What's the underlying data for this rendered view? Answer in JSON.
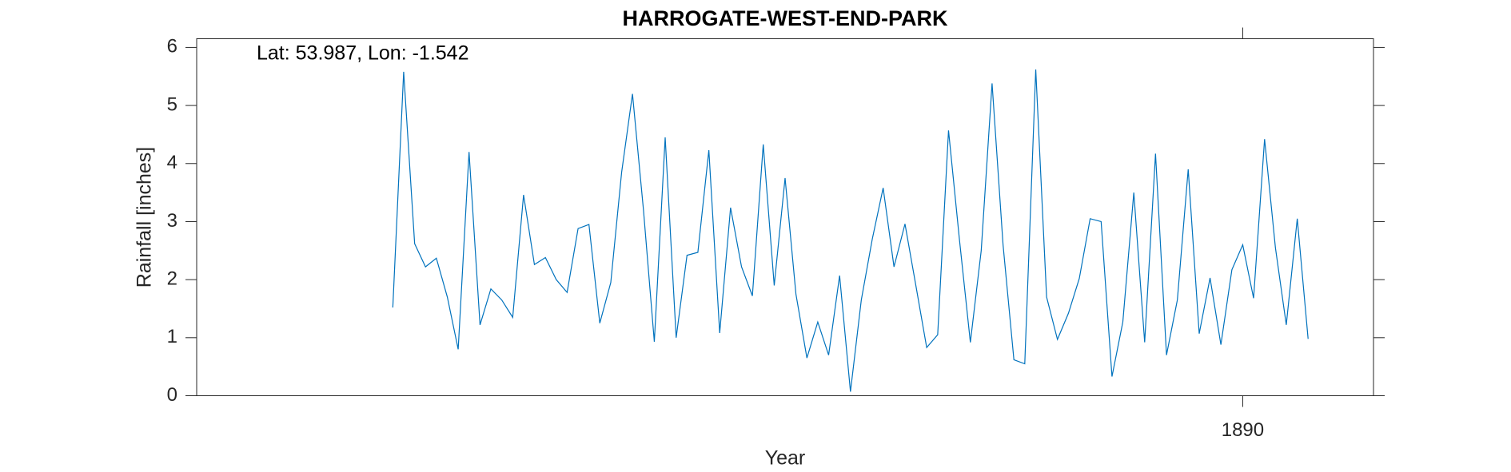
{
  "chart_data": {
    "type": "line",
    "title": "HARROGATE-WEST-END-PARK",
    "annotation": "Lat: 53.987, Lon: -1.542",
    "xlabel": "Year",
    "ylabel": "Rainfall [inches]",
    "xlim": [
      1882,
      1891
    ],
    "xticks": [
      1890
    ],
    "ylim": [
      0,
      6.15
    ],
    "yticks": [
      0,
      1,
      2,
      3,
      4,
      5,
      6
    ],
    "series": [
      {
        "name": "Rainfall",
        "color": "#0072bd",
        "x": [
          1883.5,
          1883.583,
          1883.667,
          1883.75,
          1883.833,
          1883.917,
          1884,
          1884.083,
          1884.167,
          1884.25,
          1884.333,
          1884.417,
          1884.5,
          1884.583,
          1884.667,
          1884.75,
          1884.833,
          1884.917,
          1885,
          1885.083,
          1885.167,
          1885.25,
          1885.333,
          1885.417,
          1885.5,
          1885.583,
          1885.667,
          1885.75,
          1885.833,
          1885.917,
          1886,
          1886.083,
          1886.167,
          1886.25,
          1886.333,
          1886.417,
          1886.5,
          1886.583,
          1886.667,
          1886.75,
          1886.833,
          1886.917,
          1887,
          1887.083,
          1887.167,
          1887.25,
          1887.333,
          1887.417,
          1887.5,
          1887.583,
          1887.667,
          1887.75,
          1887.833,
          1887.917,
          1888,
          1888.083,
          1888.167,
          1888.25,
          1888.333,
          1888.417,
          1888.5,
          1888.583,
          1888.667,
          1888.75,
          1888.833,
          1888.917,
          1889,
          1889.083,
          1889.167,
          1889.25,
          1889.333,
          1889.417,
          1889.5,
          1889.583,
          1889.667,
          1889.75,
          1889.833,
          1889.917,
          1890,
          1890.083,
          1890.167,
          1890.25,
          1890.333,
          1890.417,
          1890.5
        ],
        "values": [
          1.52,
          5.58,
          2.62,
          2.22,
          2.37,
          1.7,
          0.8,
          4.2,
          1.22,
          1.84,
          1.65,
          1.35,
          3.46,
          2.26,
          2.38,
          2.0,
          1.78,
          2.88,
          2.95,
          1.25,
          1.95,
          3.85,
          5.2,
          3.2,
          0.93,
          4.45,
          1.0,
          2.42,
          2.47,
          4.23,
          1.08,
          3.24,
          2.22,
          1.72,
          4.33,
          1.9,
          3.75,
          1.75,
          0.65,
          1.27,
          0.7,
          2.07,
          0.07,
          1.65,
          2.7,
          3.58,
          2.22,
          2.96,
          1.9,
          0.83,
          1.05,
          4.57,
          2.7,
          0.92,
          2.5,
          5.38,
          2.6,
          0.62,
          0.55,
          5.62,
          1.7,
          0.97,
          1.42,
          2.02,
          3.05,
          3.0,
          0.33,
          1.27,
          3.5,
          0.92,
          4.17,
          0.7,
          1.65,
          3.9,
          1.07,
          2.03,
          0.88,
          2.17,
          2.6,
          1.68,
          4.42,
          2.55,
          1.22,
          3.05,
          0.98
        ]
      }
    ]
  }
}
